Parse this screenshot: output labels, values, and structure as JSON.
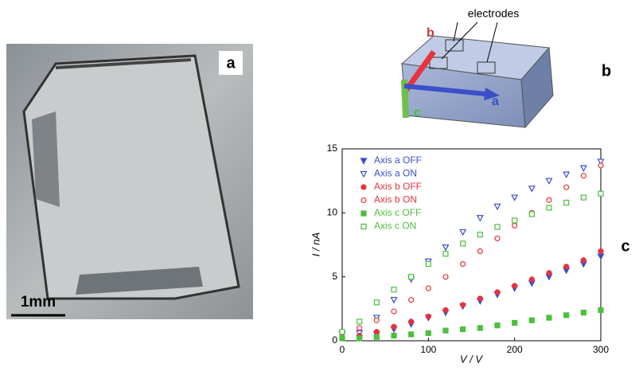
{
  "panels": {
    "a": "a",
    "b": "b",
    "c": "c"
  },
  "photo": {
    "scale_bar": "1mm"
  },
  "diagram": {
    "electrodes": "electrodes",
    "axis_a": "a",
    "axis_b": "b",
    "axis_c": "c"
  },
  "chart_data": {
    "type": "scatter",
    "xlabel": "V / V",
    "ylabel": "I / nA",
    "x": [
      0,
      20,
      40,
      60,
      80,
      100,
      120,
      140,
      160,
      180,
      200,
      220,
      240,
      260,
      280,
      300
    ],
    "xlim": [
      0,
      300
    ],
    "ylim": [
      0,
      15
    ],
    "xticks": [
      0,
      100,
      200,
      300
    ],
    "yticks": [
      0,
      5,
      10,
      15
    ],
    "series": [
      {
        "name": "Axis a OFF",
        "color": "#3a4fc8",
        "marker": "triangle",
        "filled": true,
        "values": [
          0.5,
          0.2,
          0.5,
          0.9,
          1.3,
          1.8,
          2.2,
          2.7,
          3.1,
          3.6,
          4.1,
          4.5,
          5.0,
          5.5,
          6.0,
          6.6
        ]
      },
      {
        "name": "Axis a ON",
        "color": "#3a4fc8",
        "marker": "triangle",
        "filled": false,
        "values": [
          0.5,
          0.6,
          1.8,
          3.2,
          4.8,
          6.2,
          7.3,
          8.5,
          9.6,
          10.5,
          11.2,
          11.9,
          12.5,
          13.0,
          13.5,
          14.0
        ]
      },
      {
        "name": "Axis b OFF",
        "color": "#e8323c",
        "marker": "circle",
        "filled": true,
        "values": [
          0.6,
          0.4,
          0.7,
          1.1,
          1.5,
          1.9,
          2.4,
          2.8,
          3.3,
          3.8,
          4.3,
          4.8,
          5.3,
          5.8,
          6.3,
          7.0
        ]
      },
      {
        "name": "Axis b ON",
        "color": "#e8323c",
        "marker": "circle",
        "filled": false,
        "values": [
          0.6,
          1.0,
          1.6,
          2.3,
          3.2,
          4.1,
          5.0,
          6.0,
          7.0,
          8.0,
          9.0,
          10.0,
          11.0,
          12.0,
          12.9,
          13.7
        ]
      },
      {
        "name": "Axis c OFF",
        "color": "#4cbf3c",
        "marker": "square",
        "filled": true,
        "values": [
          0.2,
          0.2,
          0.3,
          0.4,
          0.5,
          0.6,
          0.8,
          0.9,
          1.0,
          1.2,
          1.4,
          1.6,
          1.8,
          2.0,
          2.2,
          2.4
        ]
      },
      {
        "name": "Axis c ON",
        "color": "#4cbf3c",
        "marker": "square",
        "filled": false,
        "values": [
          0.7,
          1.5,
          3.0,
          4.0,
          5.0,
          6.0,
          6.8,
          7.6,
          8.3,
          8.9,
          9.4,
          9.9,
          10.4,
          10.8,
          11.2,
          11.5
        ]
      }
    ]
  }
}
